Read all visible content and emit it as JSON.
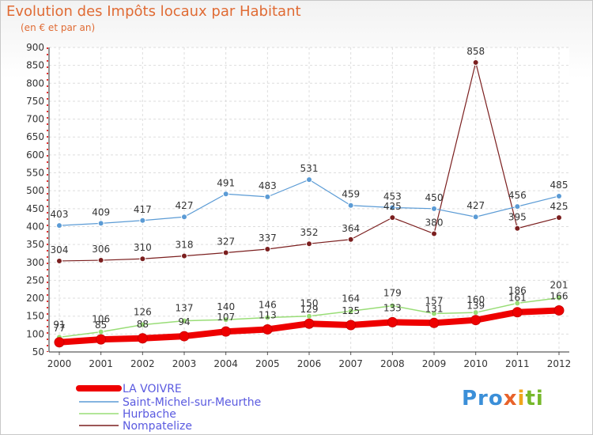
{
  "title": "Evolution des Impôts locaux par Habitant",
  "subtitle": "(en € et par an)",
  "logo": [
    "Pro",
    "x",
    "i",
    "ti"
  ],
  "chart_data": {
    "type": "line",
    "x": [
      2000,
      2001,
      2002,
      2003,
      2004,
      2005,
      2006,
      2007,
      2008,
      2009,
      2010,
      2011,
      2012
    ],
    "ylim": [
      50,
      900
    ],
    "yticks": [
      50,
      100,
      150,
      200,
      250,
      300,
      350,
      400,
      450,
      500,
      550,
      600,
      650,
      700,
      750,
      800,
      850,
      900
    ],
    "grid": true,
    "legend_position": "bottom-left",
    "series": [
      {
        "name": "LA VOIVRE",
        "color": "#ee0000",
        "values": [
          77,
          85,
          88,
          94,
          107,
          113,
          129,
          125,
          133,
          131,
          139,
          161,
          166
        ]
      },
      {
        "name": "Saint-Michel-sur-Meurthe",
        "color": "#5b9bd5",
        "values": [
          403,
          409,
          417,
          427,
          491,
          483,
          531,
          459,
          453,
          450,
          427,
          456,
          485
        ]
      },
      {
        "name": "Hurbache",
        "color": "#99dd77",
        "values": [
          91,
          106,
          126,
          137,
          140,
          146,
          150,
          164,
          179,
          157,
          160,
          186,
          201
        ]
      },
      {
        "name": "Nompatelize",
        "color": "#7b1f1f",
        "values": [
          304,
          306,
          310,
          318,
          327,
          337,
          352,
          364,
          425,
          380,
          858,
          395,
          425
        ]
      }
    ]
  }
}
